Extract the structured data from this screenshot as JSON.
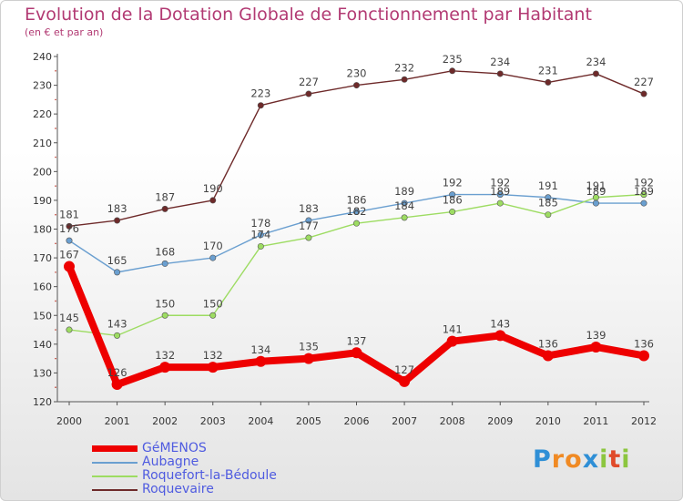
{
  "title": "Evolution de la Dotation Globale de Fonctionnement par Habitant",
  "subtitle": "(en € et par an)",
  "brand": "Proxiti",
  "chart_data": {
    "type": "line",
    "title": "Evolution de la Dotation Globale de Fonctionnement par Habitant",
    "subtitle": "(en € et par an)",
    "xlabel": "",
    "ylabel": "",
    "ylim": [
      120,
      240
    ],
    "yticks": [
      120,
      130,
      140,
      150,
      160,
      170,
      180,
      190,
      200,
      210,
      220,
      230,
      240
    ],
    "grid": false,
    "legend_position": "bottom-left",
    "categories": [
      "2000",
      "2001",
      "2002",
      "2003",
      "2004",
      "2005",
      "2006",
      "2007",
      "2008",
      "2009",
      "2010",
      "2011",
      "2012"
    ],
    "series": [
      {
        "name": "GéMENOS",
        "color": "#ee0000",
        "emphasis": true,
        "values": [
          167,
          126,
          132,
          132,
          134,
          135,
          137,
          127,
          141,
          143,
          136,
          139,
          136
        ]
      },
      {
        "name": "Aubagne",
        "color": "#6a9fd0",
        "emphasis": false,
        "values": [
          176,
          165,
          168,
          170,
          178,
          183,
          186,
          189,
          192,
          192,
          191,
          189,
          189
        ]
      },
      {
        "name": "Roquefort-la-Bédoule",
        "color": "#9ddc62",
        "emphasis": false,
        "values": [
          145,
          143,
          150,
          150,
          174,
          177,
          182,
          184,
          186,
          189,
          185,
          191,
          192
        ]
      },
      {
        "name": "Roquevaire",
        "color": "#6e2a2a",
        "emphasis": false,
        "values": [
          181,
          183,
          187,
          190,
          223,
          227,
          230,
          232,
          235,
          234,
          231,
          234,
          227
        ]
      }
    ]
  }
}
